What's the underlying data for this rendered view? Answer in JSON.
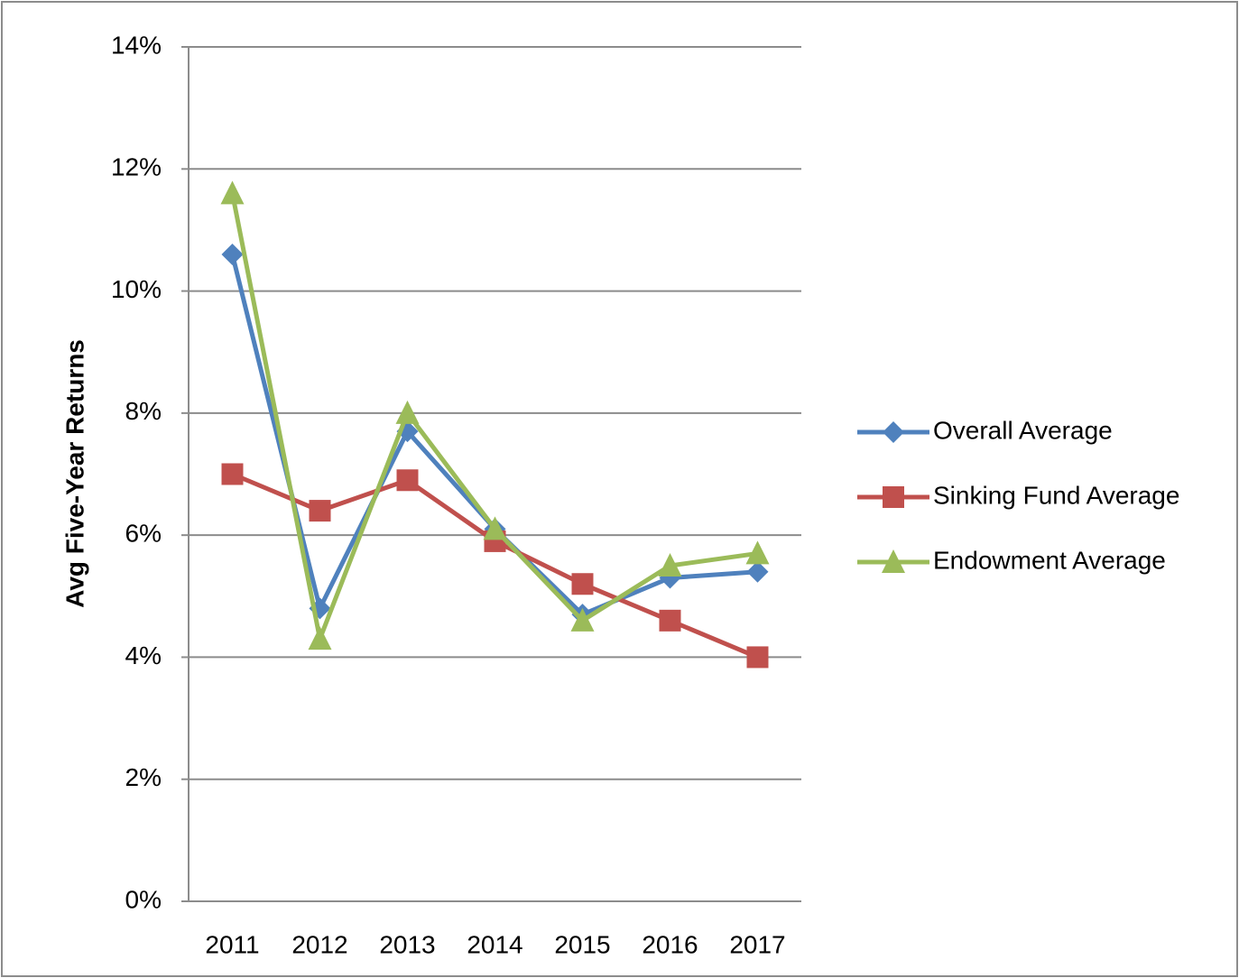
{
  "chart_data": {
    "type": "line",
    "y_label": "Avg Five-Year Returns",
    "categories": [
      "2011",
      "2012",
      "2013",
      "2014",
      "2015",
      "2016",
      "2017"
    ],
    "series": [
      {
        "name": "Overall Average",
        "color": "#4f81bd",
        "marker": "diamond",
        "values": [
          10.6,
          4.8,
          7.7,
          6.1,
          4.7,
          5.3,
          5.4
        ]
      },
      {
        "name": "Sinking Fund Average",
        "color": "#c0504d",
        "marker": "square",
        "values": [
          7.0,
          6.4,
          6.9,
          5.9,
          5.2,
          4.6,
          4.0
        ]
      },
      {
        "name": "Endowment Average",
        "color": "#9bbb59",
        "marker": "triangle",
        "values": [
          11.6,
          4.3,
          8.0,
          6.1,
          4.6,
          5.5,
          5.7
        ]
      }
    ],
    "ylim": [
      0,
      14
    ],
    "yticks": [
      {
        "value": 0,
        "label": "0%"
      },
      {
        "value": 2,
        "label": "2%"
      },
      {
        "value": 4,
        "label": "4%"
      },
      {
        "value": 6,
        "label": "6%"
      },
      {
        "value": 8,
        "label": "8%"
      },
      {
        "value": 10,
        "label": "10%"
      },
      {
        "value": 12,
        "label": "12%"
      },
      {
        "value": 14,
        "label": "14%"
      }
    ],
    "grid": true,
    "legend": "right"
  }
}
